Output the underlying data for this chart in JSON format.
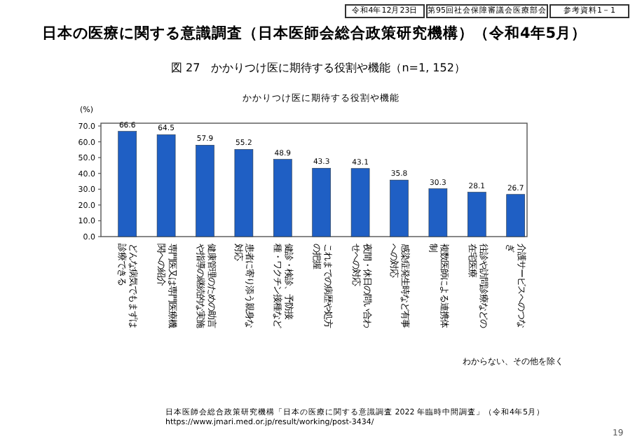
{
  "chart_data": {
    "type": "bar",
    "title": "日本の医療に関する意識調査（日本医師会総合政策研究機構）（令和4年5月）",
    "subtitle": "図 27　かかりつけ医に期待する役割や機能（n=1, 152）",
    "ylabel": "(%)",
    "categories": [
      "どんな病気でもまずは診療できる",
      "専門医又は専門医療機関への紹介",
      "健康管理のための助言や指導の継続的な実施",
      "患者に寄り添う親身な対応",
      "健診・検診、予防接種・ワクチン接種など",
      "これまでの病歴や処方の把握",
      "夜間・休日の問い合わせへの対応",
      "感染症発生時など有事への対応",
      "複数医師による連携体制",
      "往診や訪問診療などの在宅医療",
      "介護サービスへのつなぎ"
    ],
    "values": [
      66.6,
      64.5,
      57.9,
      55.2,
      48.9,
      43.3,
      43.1,
      35.8,
      30.3,
      28.1,
      26.7
    ],
    "color": "#1f5fc4",
    "data_labels": true,
    "ylim": [
      0,
      70
    ],
    "yticks": [
      {
        "value": 0,
        "label": "0.0"
      },
      {
        "value": 10,
        "label": "10.0"
      },
      {
        "value": 20,
        "label": "20.0"
      },
      {
        "value": 30,
        "label": "30.0"
      },
      {
        "value": 40,
        "label": "40.0"
      },
      {
        "value": 50,
        "label": "50.0"
      },
      {
        "value": 60,
        "label": "60.0"
      },
      {
        "value": 70,
        "label": "70.0"
      }
    ],
    "grid": false,
    "annotations": [
      "令和4年12月23日",
      "第95回社会保障審議会医療部会",
      "参考資料1－1",
      "かかりつけ医に期待する役割や機能",
      "わからない、その他を除く",
      "日本医師会総合政策研究機構「日本の医療に関する意識調査 2022 年臨時中間調査」（令和4年5月）",
      "https://www.jmari.med.or.jp/result/working/post-3434/",
      "19"
    ]
  }
}
